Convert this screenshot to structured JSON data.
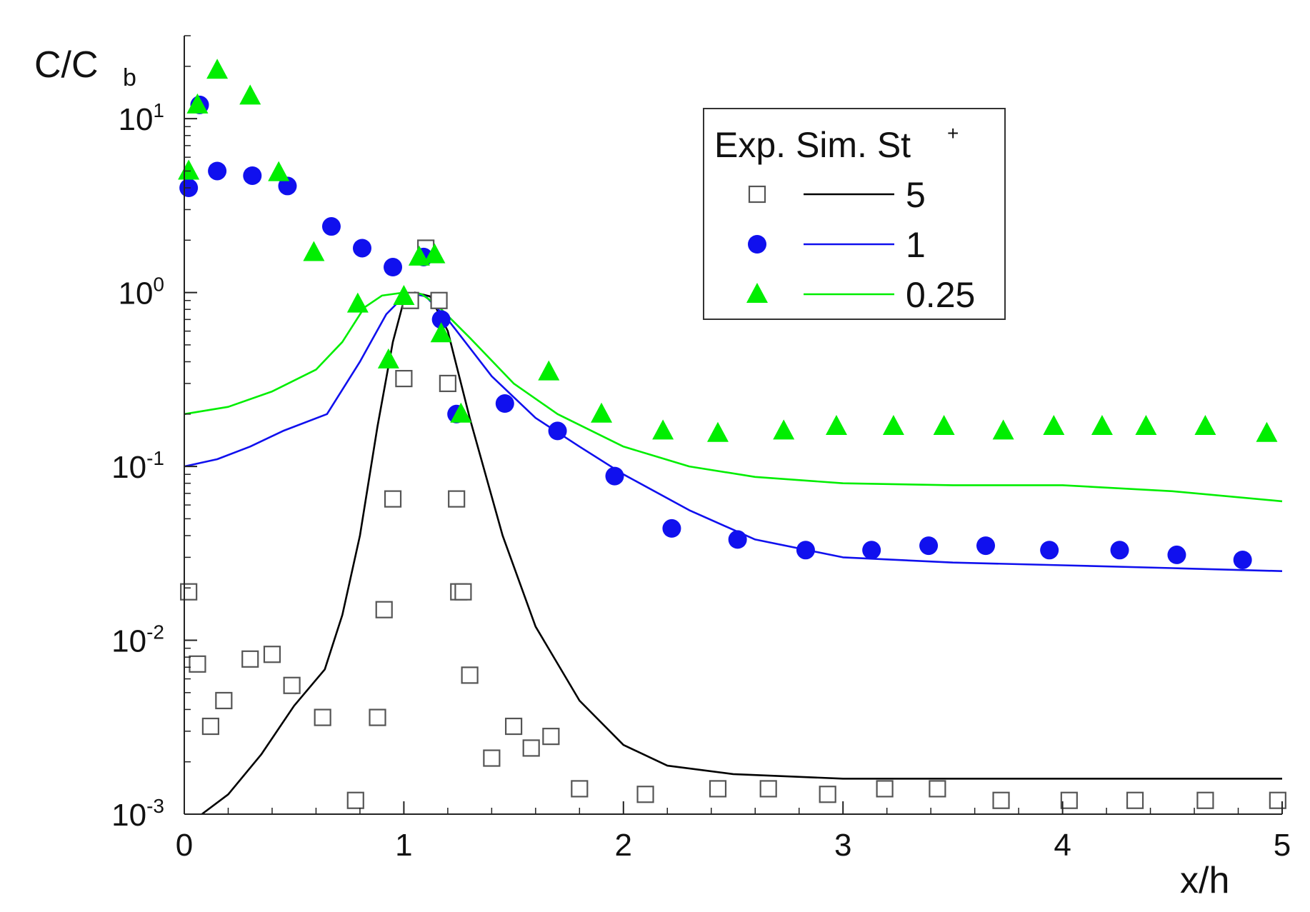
{
  "chart_data": {
    "type": "scatter",
    "title": "",
    "xlabel": "x/h",
    "ylabel": "C/C_b",
    "ylabel_main": "C/C",
    "ylabel_sub": "b",
    "yscale": "log",
    "xlim": [
      0,
      5
    ],
    "ylim": [
      0.001,
      30
    ],
    "x_ticks": [
      0,
      1,
      2,
      3,
      4,
      5
    ],
    "x_tick_labels": [
      "0",
      "1",
      "2",
      "3",
      "4",
      "5"
    ],
    "y_ticks": [
      {
        "value": 10,
        "base": "10",
        "exp": "1"
      },
      {
        "value": 1,
        "base": "10",
        "exp": "0"
      },
      {
        "value": 0.1,
        "base": "10",
        "exp": "-1"
      },
      {
        "value": 0.01,
        "base": "10",
        "exp": "-2"
      },
      {
        "value": 0.001,
        "base": "10",
        "exp": "-3"
      }
    ],
    "legend": {
      "position": "top-right",
      "header": "Exp. Sim. St",
      "header_sup": "+",
      "entries": [
        {
          "label": "5",
          "series": "st5"
        },
        {
          "label": "1",
          "series": "st1"
        },
        {
          "label": "0.25",
          "series": "st025"
        }
      ]
    },
    "series": [
      {
        "id": "st5",
        "name": "5",
        "color": "#000000",
        "marker": "square",
        "exp_x": [
          0.02,
          0.06,
          0.12,
          0.18,
          0.3,
          0.4,
          0.49,
          0.63,
          0.78,
          0.88,
          0.91,
          0.95,
          1.0,
          1.03,
          1.1,
          1.16,
          1.2,
          1.24,
          1.25,
          1.27,
          1.3,
          1.4,
          1.5,
          1.58,
          1.67,
          1.8,
          2.1,
          2.43,
          2.66,
          2.93,
          3.19,
          3.43,
          3.72,
          4.03,
          4.33,
          4.65,
          4.98
        ],
        "exp_y": [
          0.019,
          0.0073,
          0.0032,
          0.0045,
          0.0078,
          0.0083,
          0.0055,
          0.0036,
          0.0012,
          0.0036,
          0.015,
          0.065,
          0.32,
          0.9,
          1.8,
          0.9,
          0.3,
          0.065,
          0.019,
          0.019,
          0.0063,
          0.0021,
          0.0032,
          0.0024,
          0.0028,
          0.0014,
          0.0013,
          0.0014,
          0.0014,
          0.0013,
          0.0014,
          0.0014,
          0.0012,
          0.0012,
          0.0012,
          0.0012,
          0.0012
        ],
        "sim_x": [
          0.08,
          0.2,
          0.35,
          0.5,
          0.64,
          0.72,
          0.8,
          0.88,
          0.95,
          1.0,
          1.05,
          1.12,
          1.2,
          1.3,
          1.45,
          1.6,
          1.8,
          2.0,
          2.2,
          2.5,
          3.0,
          3.5,
          4.0,
          4.5,
          5.0
        ],
        "sim_y": [
          0.001,
          0.0013,
          0.0022,
          0.0042,
          0.0068,
          0.014,
          0.04,
          0.17,
          0.52,
          0.9,
          1.0,
          0.95,
          0.6,
          0.19,
          0.04,
          0.012,
          0.0045,
          0.0025,
          0.0019,
          0.0017,
          0.0016,
          0.0016,
          0.0016,
          0.0016,
          0.0016
        ]
      },
      {
        "id": "st1",
        "name": "1",
        "color": "#1010ee",
        "marker": "circle",
        "exp_x": [
          0.02,
          0.07,
          0.15,
          0.31,
          0.47,
          0.67,
          0.81,
          0.95,
          1.09,
          1.17,
          1.24,
          1.46,
          1.7,
          1.96,
          2.22,
          2.52,
          2.83,
          3.13,
          3.39,
          3.65,
          3.94,
          4.26,
          4.52,
          4.82
        ],
        "exp_y": [
          4.0,
          12.0,
          5.0,
          4.7,
          4.1,
          2.4,
          1.8,
          1.4,
          1.6,
          0.7,
          0.2,
          0.23,
          0.16,
          0.088,
          0.044,
          0.038,
          0.033,
          0.033,
          0.035,
          0.035,
          0.033,
          0.033,
          0.031,
          0.029
        ],
        "sim_x": [
          0.0,
          0.15,
          0.3,
          0.45,
          0.65,
          0.8,
          0.92,
          1.0,
          1.05,
          1.1,
          1.2,
          1.4,
          1.6,
          1.8,
          2.0,
          2.3,
          2.6,
          3.0,
          3.5,
          4.0,
          4.5,
          5.0
        ],
        "sim_y": [
          0.1,
          0.11,
          0.13,
          0.16,
          0.2,
          0.4,
          0.75,
          0.95,
          0.98,
          0.95,
          0.7,
          0.33,
          0.19,
          0.13,
          0.09,
          0.056,
          0.038,
          0.03,
          0.028,
          0.027,
          0.026,
          0.025
        ]
      },
      {
        "id": "st025",
        "name": "0.25",
        "color": "#00ee00",
        "marker": "triangle",
        "exp_x": [
          0.02,
          0.06,
          0.15,
          0.3,
          0.43,
          0.59,
          0.79,
          0.93,
          1.0,
          1.07,
          1.14,
          1.17,
          1.26,
          1.66,
          1.9,
          2.18,
          2.43,
          2.73,
          2.97,
          3.23,
          3.46,
          3.73,
          3.96,
          4.18,
          4.38,
          4.65,
          4.93
        ],
        "exp_y": [
          5.0,
          12.0,
          19.0,
          13.5,
          4.9,
          1.7,
          0.86,
          0.41,
          0.95,
          1.6,
          1.65,
          0.58,
          0.2,
          0.35,
          0.2,
          0.16,
          0.155,
          0.16,
          0.17,
          0.17,
          0.17,
          0.16,
          0.17,
          0.17,
          0.17,
          0.17,
          0.155
        ],
        "sim_x": [
          0.0,
          0.2,
          0.4,
          0.6,
          0.72,
          0.82,
          0.9,
          1.0,
          1.08,
          1.15,
          1.3,
          1.5,
          1.7,
          2.0,
          2.3,
          2.6,
          3.0,
          3.5,
          4.0,
          4.5,
          5.0
        ],
        "sim_y": [
          0.2,
          0.22,
          0.27,
          0.36,
          0.52,
          0.82,
          0.96,
          1.0,
          0.98,
          0.85,
          0.55,
          0.3,
          0.2,
          0.13,
          0.1,
          0.087,
          0.08,
          0.078,
          0.078,
          0.072,
          0.063
        ]
      }
    ]
  }
}
